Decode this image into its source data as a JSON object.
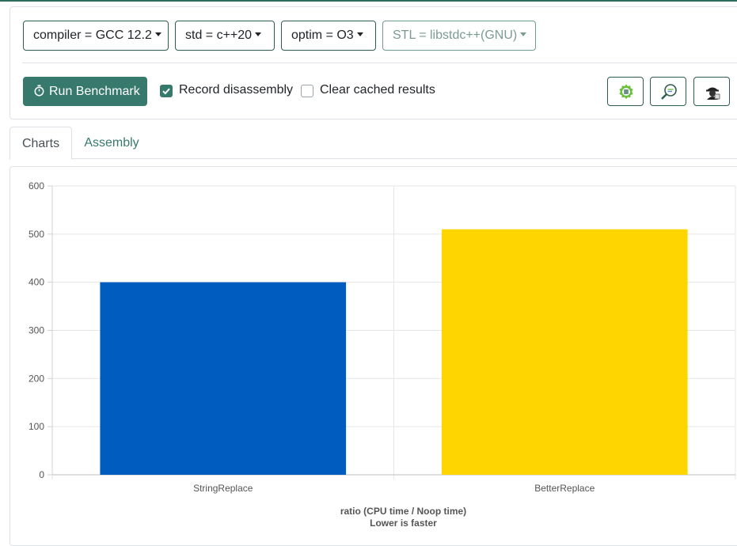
{
  "toolbar": {
    "compiler_label": "compiler = GCC 12.2",
    "std_label": "std = c++20",
    "optim_label": "optim = O3",
    "stl_label": "STL = libstdc++(GNU)",
    "run_label": "Run Benchmark",
    "record_label": "Record disassembly",
    "record_checked": true,
    "clear_label": "Clear cached results",
    "clear_checked": false,
    "icons": [
      "settings-gear-icon",
      "search-code-icon",
      "spy-icon"
    ]
  },
  "tabs": [
    {
      "label": "Charts",
      "active": true
    },
    {
      "label": "Assembly",
      "active": false
    }
  ],
  "colors": {
    "accent": "#377a6d",
    "bar1": "#005cbf",
    "bar2": "#ffd500"
  },
  "chart_data": {
    "type": "bar",
    "categories": [
      "StringReplace",
      "BetterReplace"
    ],
    "values": [
      400,
      510
    ],
    "colors": [
      "#005cbf",
      "#ffd500"
    ],
    "ylim": [
      0,
      600
    ],
    "yticks": [
      0,
      100,
      200,
      300,
      400,
      500,
      600
    ],
    "xlabel_line1": "ratio (CPU time / Noop time)",
    "xlabel_line2": "Lower is faster",
    "grid": true
  }
}
